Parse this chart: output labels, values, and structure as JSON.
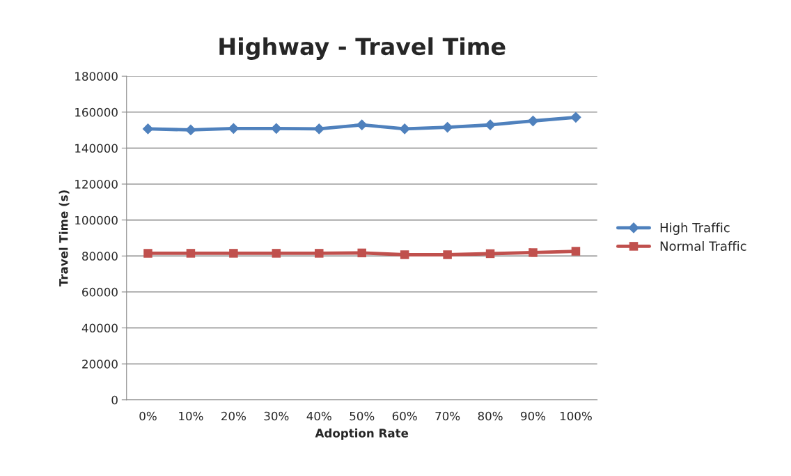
{
  "chart_data": {
    "type": "line",
    "title": "Highway - Travel Time",
    "xlabel": "Adoption Rate",
    "ylabel": "Travel Time (s)",
    "categories": [
      "0%",
      "10%",
      "20%",
      "30%",
      "40%",
      "50%",
      "60%",
      "70%",
      "80%",
      "90%",
      "100%"
    ],
    "series": [
      {
        "name": "High Traffic",
        "color": "#4f81bd",
        "marker": "diamond",
        "values": [
          150700,
          150100,
          150900,
          150900,
          150700,
          152900,
          150700,
          151600,
          152900,
          155100,
          157100
        ]
      },
      {
        "name": "Normal Traffic",
        "color": "#c0504d",
        "marker": "square",
        "values": [
          81500,
          81500,
          81500,
          81500,
          81500,
          81700,
          80700,
          80700,
          81300,
          81900,
          82600
        ]
      }
    ],
    "ylim": [
      0,
      180000
    ],
    "yticks": [
      0,
      20000,
      40000,
      60000,
      80000,
      100000,
      120000,
      140000,
      160000,
      180000
    ],
    "grid": "y",
    "legend": "right"
  }
}
